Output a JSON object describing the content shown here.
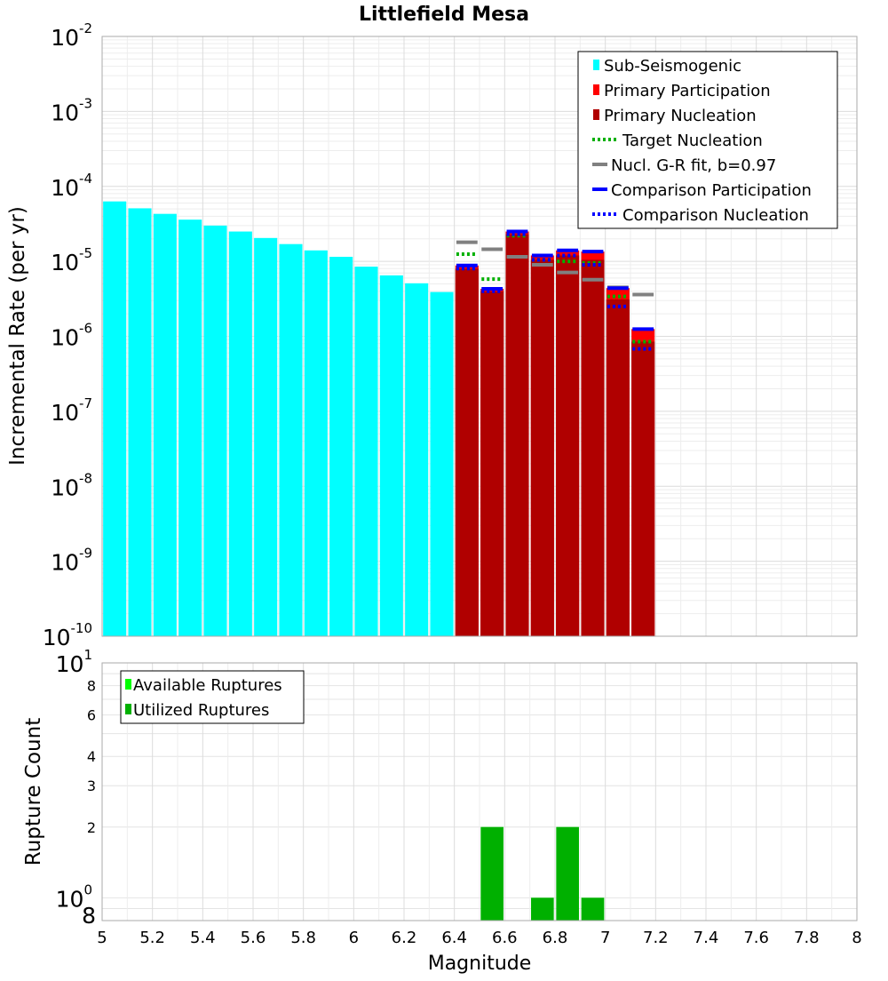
{
  "chart_data": [
    {
      "type": "bar",
      "title": "Littlefield Mesa",
      "xlabel": "",
      "ylabel": "Incremental Rate (per yr)",
      "yscale": "log",
      "xlim": [
        5,
        8
      ],
      "ylim": [
        1e-10,
        0.01
      ],
      "legend_position": "top-right",
      "grid": true,
      "series": [
        {
          "name": "Sub-Seismogenic",
          "kind": "bar",
          "color": "#00ffff",
          "x": [
            5.05,
            5.15,
            5.25,
            5.35,
            5.45,
            5.55,
            5.65,
            5.75,
            5.85,
            5.95,
            6.05,
            6.15,
            6.25,
            6.35
          ],
          "values": [
            6.3e-05,
            5.1e-05,
            4.3e-05,
            3.6e-05,
            3e-05,
            2.5e-05,
            2.05e-05,
            1.7e-05,
            1.4e-05,
            1.15e-05,
            8.5e-06,
            6.5e-06,
            5.1e-06,
            3.9e-06
          ]
        },
        {
          "name": "Primary Participation",
          "kind": "bar",
          "color": "#ff0000",
          "x": [
            6.45,
            6.55,
            6.65,
            6.75,
            6.85,
            6.95,
            7.05,
            7.15
          ],
          "values": [
            8.8e-06,
            4.3e-06,
            2.5e-05,
            1.2e-05,
            1.4e-05,
            1.35e-05,
            4.4e-06,
            1.25e-06
          ]
        },
        {
          "name": "Primary Nucleation",
          "kind": "bar",
          "color": "#b00000",
          "x": [
            6.45,
            6.55,
            6.65,
            6.75,
            6.85,
            6.95,
            7.05,
            7.15
          ],
          "values": [
            8e-06,
            4e-06,
            2.3e-05,
            1.05e-05,
            1.2e-05,
            1.05e-05,
            3.1e-06,
            8.5e-07
          ]
        },
        {
          "name": "Target Nucleation",
          "kind": "dotted-step",
          "color": "#00b000",
          "x": [
            6.45,
            6.55,
            6.65,
            6.75,
            6.85,
            6.95,
            7.05,
            7.15
          ],
          "values": [
            1.25e-05,
            5.8e-06,
            2.2e-05,
            1.05e-05,
            1e-05,
            9.5e-06,
            3.4e-06,
            8.5e-07
          ]
        },
        {
          "name": "Nucl. G-R fit, b=0.97",
          "kind": "solid-step",
          "color": "#808080",
          "x": [
            6.45,
            6.55,
            6.65,
            6.75,
            6.85,
            6.95,
            7.05,
            7.15
          ],
          "values": [
            1.8e-05,
            1.45e-05,
            1.15e-05,
            9e-06,
            7.1e-06,
            5.7e-06,
            4.5e-06,
            3.6e-06
          ]
        },
        {
          "name": "Comparison Participation",
          "kind": "solid-step",
          "color": "#0000ff",
          "x": [
            6.45,
            6.55,
            6.65,
            6.75,
            6.85,
            6.95,
            7.05,
            7.15
          ],
          "values": [
            8.8e-06,
            4.3e-06,
            2.5e-05,
            1.2e-05,
            1.4e-05,
            1.35e-05,
            4.4e-06,
            1.25e-06
          ]
        },
        {
          "name": "Comparison Nucleation",
          "kind": "dotted-step",
          "color": "#0000ff",
          "x": [
            6.45,
            6.55,
            6.65,
            6.75,
            6.85,
            6.95,
            7.05,
            7.15
          ],
          "values": [
            8e-06,
            4e-06,
            2.3e-05,
            1.05e-05,
            1.2e-05,
            9e-06,
            2.5e-06,
            6.8e-07
          ]
        }
      ],
      "y_decade_ticks": [
        {
          "base": "10",
          "exp": "-2"
        },
        {
          "base": "10",
          "exp": "-3"
        },
        {
          "base": "10",
          "exp": "-4"
        },
        {
          "base": "10",
          "exp": "-5"
        },
        {
          "base": "10",
          "exp": "-6"
        },
        {
          "base": "10",
          "exp": "-7"
        },
        {
          "base": "10",
          "exp": "-8"
        },
        {
          "base": "10",
          "exp": "-9"
        },
        {
          "base": "10",
          "exp": "-10"
        }
      ]
    },
    {
      "type": "bar",
      "title": "",
      "xlabel": "Magnitude",
      "ylabel": "Rupture Count",
      "yscale": "log",
      "xlim": [
        5,
        8
      ],
      "ylim": [
        0.8,
        10
      ],
      "legend_position": "top-left",
      "grid": true,
      "x_ticks": [
        "5",
        "5.2",
        "5.4",
        "5.6",
        "5.8",
        "6",
        "6.2",
        "6.4",
        "6.6",
        "6.8",
        "7",
        "7.2",
        "7.4",
        "7.6",
        "7.8",
        "8"
      ],
      "y_ticks": [
        {
          "value": 10,
          "base": "10",
          "exp": "1"
        },
        {
          "value": 8,
          "label": "8"
        },
        {
          "value": 6,
          "label": "6"
        },
        {
          "value": 4,
          "label": "4"
        },
        {
          "value": 3,
          "label": "3"
        },
        {
          "value": 2,
          "label": "2"
        },
        {
          "value": 1,
          "base": "10",
          "exp": "0"
        },
        {
          "value": 0.8,
          "label": "8"
        }
      ],
      "series": [
        {
          "name": "Available Ruptures",
          "kind": "bar",
          "color": "#00ff00",
          "x": [
            6.55,
            6.75,
            6.85,
            6.95
          ],
          "values": [
            2,
            1,
            2,
            1
          ]
        },
        {
          "name": "Utilized Ruptures",
          "kind": "bar",
          "color": "#00b000",
          "x": [
            6.55,
            6.75,
            6.85,
            6.95
          ],
          "values": [
            2,
            1,
            2,
            1
          ]
        }
      ]
    }
  ]
}
